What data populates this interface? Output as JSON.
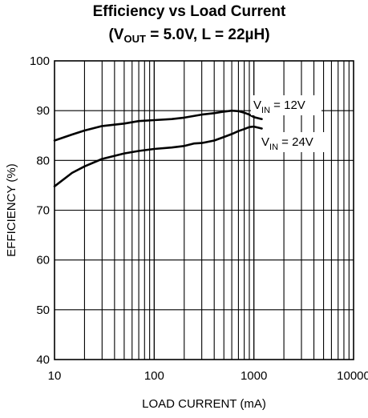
{
  "chart_data": {
    "type": "line",
    "title": "Efficiency vs Load Current",
    "subtitle": {
      "prefix": "(V",
      "subscript": "OUT",
      "suffix": " = 5.0V, L = 22µH)"
    },
    "xlabel": "LOAD CURRENT (mA)",
    "ylabel": "EFFICIENCY (%)",
    "x_scale": "log",
    "xlim": [
      10,
      10000
    ],
    "ylim": [
      40,
      100
    ],
    "grid": true,
    "x_ticks": [
      "10",
      "100",
      "1000",
      "10000"
    ],
    "y_ticks": [
      "40",
      "50",
      "60",
      "70",
      "80",
      "90",
      "100"
    ],
    "series": [
      {
        "name": "V_IN = 12V",
        "label_parts": {
          "prefix": "V",
          "subscript": "IN",
          "suffix": " = 12V"
        },
        "x": [
          10,
          15,
          20,
          30,
          50,
          70,
          100,
          150,
          200,
          300,
          400,
          500,
          600,
          700,
          800,
          900,
          1000,
          1200
        ],
        "y": [
          84,
          85.2,
          86,
          86.9,
          87.4,
          87.9,
          88.1,
          88.3,
          88.6,
          89.2,
          89.5,
          89.8,
          90,
          89.9,
          89.6,
          89.2,
          88.7,
          88.3
        ]
      },
      {
        "name": "V_IN = 24V",
        "label_parts": {
          "prefix": "V",
          "subscript": "IN",
          "suffix": " = 24V"
        },
        "x": [
          10,
          15,
          20,
          30,
          50,
          70,
          100,
          150,
          200,
          250,
          300,
          400,
          500,
          600,
          700,
          800,
          900,
          1000,
          1200
        ],
        "y": [
          74.8,
          77.5,
          78.8,
          80.3,
          81.4,
          81.9,
          82.3,
          82.6,
          82.9,
          83.4,
          83.5,
          84,
          84.7,
          85.3,
          85.9,
          86.3,
          86.7,
          86.8,
          86.4
        ]
      }
    ]
  }
}
